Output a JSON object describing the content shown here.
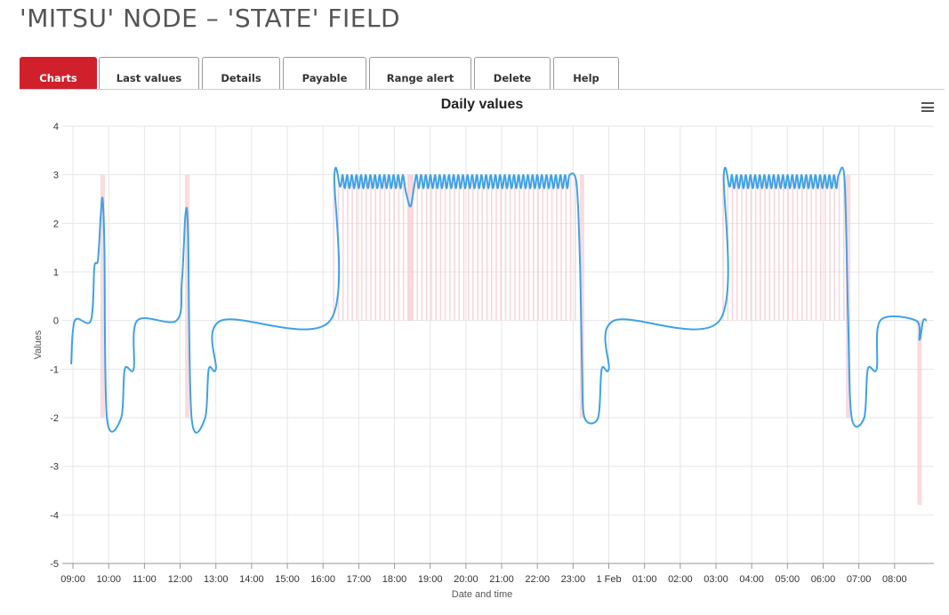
{
  "page": {
    "title": "'MITSU' NODE – 'STATE' FIELD"
  },
  "tabs": [
    {
      "label": "Charts",
      "active": true
    },
    {
      "label": "Last values",
      "active": false
    },
    {
      "label": "Details",
      "active": false
    },
    {
      "label": "Payable",
      "active": false
    },
    {
      "label": "Range alert",
      "active": false
    },
    {
      "label": "Delete",
      "active": false
    },
    {
      "label": "Help",
      "active": false
    }
  ],
  "chart_menu": {
    "icon": "hamburger-menu-icon"
  },
  "chart_data": {
    "type": "line",
    "title": "Daily values",
    "xlabel": "Date and time",
    "ylabel": "Values",
    "ylim": [
      -5,
      4
    ],
    "yticks": [
      4,
      3,
      2,
      1,
      0,
      -1,
      -2,
      -3,
      -4,
      -5
    ],
    "x_unit": "hours from 09:00 (31 Jan)",
    "xlim": [
      -0.3,
      24.1
    ],
    "xticks": [
      "09:00",
      "10:00",
      "11:00",
      "12:00",
      "13:00",
      "14:00",
      "15:00",
      "16:00",
      "17:00",
      "18:00",
      "19:00",
      "20:00",
      "21:00",
      "22:00",
      "23:00",
      "1 Feb",
      "01:00",
      "02:00",
      "03:00",
      "04:00",
      "05:00",
      "06:00",
      "07:00",
      "08:00"
    ],
    "grid": true,
    "colors": {
      "line": "#3fa2e6",
      "range": "#f6c7d0",
      "grid": "#e6e6e6"
    },
    "series": [
      {
        "name": "",
        "points": [
          [
            -0.05,
            -0.9
          ],
          [
            0.05,
            0
          ],
          [
            0.5,
            0
          ],
          [
            0.6,
            1.1
          ],
          [
            0.7,
            1.25
          ],
          [
            0.78,
            2.2
          ],
          [
            0.83,
            2.5
          ],
          [
            0.88,
            1.5
          ],
          [
            0.95,
            -2
          ],
          [
            1.35,
            -2
          ],
          [
            1.45,
            -1
          ],
          [
            1.7,
            -1
          ],
          [
            1.8,
            0
          ],
          [
            2.9,
            0
          ],
          [
            3.05,
            0.8
          ],
          [
            3.15,
            2.2
          ],
          [
            3.22,
            1.8
          ],
          [
            3.32,
            -2
          ],
          [
            3.7,
            -2
          ],
          [
            3.8,
            -1
          ],
          [
            4.0,
            -1
          ],
          [
            4.15,
            0
          ],
          [
            7.2,
            0
          ],
          [
            7.32,
            3
          ],
          [
            7.48,
            2.75
          ],
          "osc:7.48-9.3",
          [
            9.35,
            2.55
          ],
          [
            9.45,
            2.35
          ],
          [
            9.55,
            2.75
          ],
          "osc:9.55-13.95",
          [
            14.1,
            2.8
          ],
          [
            14.2,
            1
          ],
          [
            14.25,
            -1
          ],
          [
            14.32,
            -2
          ],
          [
            14.7,
            -2
          ],
          [
            14.8,
            -1
          ],
          [
            15.0,
            -1
          ],
          [
            15.15,
            0
          ],
          [
            18.1,
            0
          ],
          [
            18.22,
            3
          ],
          [
            18.38,
            2.75
          ],
          "osc:18.38-21.5",
          [
            21.6,
            2.9
          ],
          [
            21.7,
            0
          ],
          [
            21.8,
            -2
          ],
          [
            22.15,
            -2
          ],
          [
            22.25,
            -1
          ],
          [
            22.5,
            -1
          ],
          [
            22.6,
            0
          ],
          [
            23.6,
            0
          ],
          [
            23.7,
            -0.4
          ],
          [
            23.8,
            0
          ],
          [
            23.9,
            0
          ]
        ]
      }
    ],
    "range_spikes": [
      {
        "x": 0.83,
        "low": -2,
        "high": 3
      },
      {
        "x": 3.2,
        "low": -2,
        "high": 3
      },
      {
        "x": 9.45,
        "low": 0,
        "high": 3
      },
      {
        "x": 14.25,
        "low": -2,
        "high": 3
      },
      {
        "x": 21.7,
        "low": -2,
        "high": 3
      },
      {
        "x": 23.7,
        "low": -3.8,
        "high": 0
      }
    ],
    "range_bands": [
      {
        "from": 7.3,
        "to": 14.1,
        "low": 0,
        "high": 3
      },
      {
        "from": 18.2,
        "to": 21.6,
        "low": 0,
        "high": 3
      }
    ]
  }
}
